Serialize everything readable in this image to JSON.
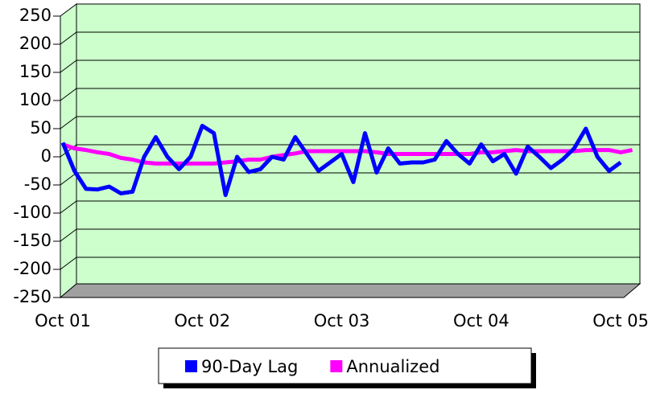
{
  "chart_data": {
    "type": "line",
    "categories": [
      "Oct 01",
      null,
      null,
      null,
      null,
      null,
      null,
      null,
      null,
      null,
      null,
      null,
      "Oct 02",
      null,
      null,
      null,
      null,
      null,
      null,
      null,
      null,
      null,
      null,
      null,
      "Oct 03",
      null,
      null,
      null,
      null,
      null,
      null,
      null,
      null,
      null,
      null,
      null,
      "Oct 04",
      null,
      null,
      null,
      null,
      null,
      null,
      null,
      null,
      null,
      null,
      null,
      "Oct 05",
      null
    ],
    "series": [
      {
        "name": "90-Day Lag",
        "color": "#0000ff",
        "values": [
          25,
          -25,
          -57,
          -58,
          -53,
          -65,
          -62,
          0,
          35,
          0,
          -22,
          0,
          55,
          42,
          -68,
          0,
          -27,
          -22,
          0,
          -5,
          35,
          5,
          -25,
          -10,
          5,
          -45,
          42,
          -28,
          15,
          -12,
          -10,
          -10,
          -5,
          28,
          5,
          -12,
          22,
          -8,
          5,
          -30,
          18,
          0,
          -20,
          -5,
          15,
          50,
          0,
          -25,
          -10,
          null
        ]
      },
      {
        "name": "Annualized",
        "color": "#ff00ff",
        "values": [
          22,
          15,
          12,
          8,
          5,
          -2,
          -5,
          -10,
          -12,
          -12,
          -12,
          -12,
          -12,
          -12,
          -10,
          -8,
          -5,
          -5,
          0,
          3,
          6,
          10,
          10,
          10,
          10,
          10,
          10,
          8,
          5,
          5,
          5,
          5,
          5,
          5,
          5,
          5,
          8,
          8,
          10,
          12,
          10,
          10,
          10,
          10,
          10,
          12,
          12,
          12,
          8,
          12
        ]
      }
    ],
    "ylim": [
      -250,
      250
    ],
    "yticks": [
      -250,
      -200,
      -150,
      -100,
      -50,
      0,
      50,
      100,
      150,
      200,
      250
    ],
    "grid": true,
    "legend": "bottom"
  }
}
